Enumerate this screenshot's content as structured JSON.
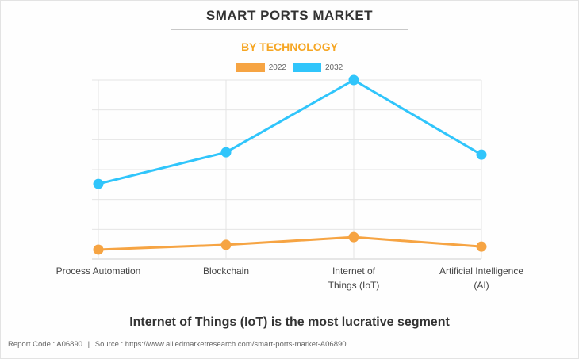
{
  "header": {
    "title": "SMART PORTS MARKET",
    "subtitle": "BY TECHNOLOGY"
  },
  "insight": "Internet of Things (IoT) is the most lucrative segment",
  "footer": {
    "report_code": "Report Code : A06890",
    "separator": "|",
    "source": "Source : https://www.alliedmarketresearch.com/smart-ports-market-A06890"
  },
  "colors": {
    "series_2022": "#f6a443",
    "series_2032": "#30c5fb",
    "grid": "#e4e4e4",
    "accent": "#f6a623"
  },
  "chart_data": {
    "type": "line",
    "title": "SMART PORTS MARKET",
    "subtitle": "BY TECHNOLOGY",
    "xlabel": "",
    "ylabel": "",
    "categories": [
      "Process Automation",
      "Blockchain",
      "Internet of Things (IoT)",
      "Artificial Intelligence (AI)"
    ],
    "category_label_lines": [
      [
        "Process Automation"
      ],
      [
        "Blockchain"
      ],
      [
        "Internet of",
        "Things (IoT)"
      ],
      [
        "Artificial Intelligence",
        "(AI)"
      ]
    ],
    "ylim": [
      0,
      6
    ],
    "y_gridlines": [
      0,
      1,
      2,
      3,
      4,
      5,
      6
    ],
    "y_tick_labels_shown": false,
    "grid": true,
    "legend_position": "top-center",
    "series": [
      {
        "name": "2022",
        "color": "#f6a443",
        "values": [
          0.32,
          0.48,
          0.74,
          0.42
        ]
      },
      {
        "name": "2032",
        "color": "#30c5fb",
        "values": [
          2.52,
          3.58,
          6.0,
          3.5
        ]
      }
    ]
  }
}
